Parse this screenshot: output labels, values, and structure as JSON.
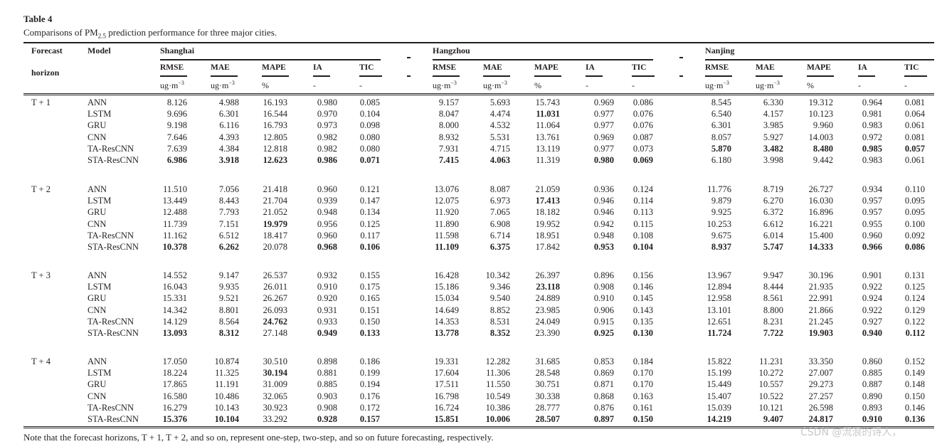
{
  "title": "Table 4",
  "caption": {
    "prefix": "Comparisons of PM",
    "subscript": "2.5",
    "suffix": " prediction performance for three major cities."
  },
  "headers": {
    "forecast": "Forecast",
    "horizon": "horizon",
    "model": "Model",
    "cities": [
      "Shanghai",
      "Hangzhou",
      "Nanjing"
    ],
    "metrics": [
      "RMSE",
      "MAE",
      "MAPE",
      "IA",
      "TIC"
    ],
    "units": [
      {
        "base": "ug·m",
        "sup": "−3"
      },
      {
        "base": "ug·m",
        "sup": "−3"
      },
      {
        "base": "%",
        "sup": ""
      },
      {
        "base": "-",
        "sup": ""
      },
      {
        "base": "-",
        "sup": ""
      }
    ]
  },
  "groups": [
    {
      "horizon": "T + 1",
      "rows": [
        {
          "model": "ANN",
          "values": [
            "8.126",
            "4.988",
            "16.193",
            "0.980",
            "0.085",
            "9.157",
            "5.693",
            "15.743",
            "0.969",
            "0.086",
            "8.545",
            "6.330",
            "19.312",
            "0.964",
            "0.081"
          ],
          "bold": []
        },
        {
          "model": "LSTM",
          "values": [
            "9.696",
            "6.301",
            "16.544",
            "0.970",
            "0.104",
            "8.047",
            "4.474",
            "11.031",
            "0.977",
            "0.076",
            "6.540",
            "4.157",
            "10.123",
            "0.981",
            "0.064"
          ],
          "bold": [
            7
          ]
        },
        {
          "model": "GRU",
          "values": [
            "9.198",
            "6.116",
            "16.793",
            "0.973",
            "0.098",
            "8.000",
            "4.532",
            "11.064",
            "0.977",
            "0.076",
            "6.301",
            "3.985",
            "9.960",
            "0.983",
            "0.061"
          ],
          "bold": []
        },
        {
          "model": "CNN",
          "values": [
            "7.646",
            "4.393",
            "12.805",
            "0.982",
            "0.080",
            "8.932",
            "5.531",
            "13.761",
            "0.969",
            "0.087",
            "8.057",
            "5.927",
            "14.003",
            "0.972",
            "0.081"
          ],
          "bold": []
        },
        {
          "model": "TA-ResCNN",
          "values": [
            "7.639",
            "4.384",
            "12.818",
            "0.982",
            "0.080",
            "7.931",
            "4.715",
            "13.119",
            "0.977",
            "0.073",
            "5.870",
            "3.482",
            "8.480",
            "0.985",
            "0.057"
          ],
          "bold": [
            10,
            11,
            12,
            13,
            14
          ]
        },
        {
          "model": "STA-ResCNN",
          "values": [
            "6.986",
            "3.918",
            "12.623",
            "0.986",
            "0.071",
            "7.415",
            "4.063",
            "11.319",
            "0.980",
            "0.069",
            "6.180",
            "3.998",
            "9.442",
            "0.983",
            "0.061"
          ],
          "bold": [
            0,
            1,
            2,
            3,
            4,
            5,
            6,
            8,
            9
          ]
        }
      ]
    },
    {
      "horizon": "T + 2",
      "rows": [
        {
          "model": "ANN",
          "values": [
            "11.510",
            "7.056",
            "21.418",
            "0.960",
            "0.121",
            "13.076",
            "8.087",
            "21.059",
            "0.936",
            "0.124",
            "11.776",
            "8.719",
            "26.727",
            "0.934",
            "0.110"
          ],
          "bold": []
        },
        {
          "model": "LSTM",
          "values": [
            "13.449",
            "8.443",
            "21.704",
            "0.939",
            "0.147",
            "12.075",
            "6.973",
            "17.413",
            "0.946",
            "0.114",
            "9.879",
            "6.270",
            "16.030",
            "0.957",
            "0.095"
          ],
          "bold": [
            7
          ]
        },
        {
          "model": "GRU",
          "values": [
            "12.488",
            "7.793",
            "21.052",
            "0.948",
            "0.134",
            "11.920",
            "7.065",
            "18.182",
            "0.946",
            "0.113",
            "9.925",
            "6.372",
            "16.896",
            "0.957",
            "0.095"
          ],
          "bold": []
        },
        {
          "model": "CNN",
          "values": [
            "11.739",
            "7.151",
            "19.979",
            "0.956",
            "0.125",
            "11.890",
            "6.908",
            "19.952",
            "0.942",
            "0.115",
            "10.253",
            "6.612",
            "16.221",
            "0.955",
            "0.100"
          ],
          "bold": [
            2
          ]
        },
        {
          "model": "TA-ResCNN",
          "values": [
            "11.162",
            "6.512",
            "18.417",
            "0.960",
            "0.117",
            "11.598",
            "6.714",
            "18.951",
            "0.948",
            "0.108",
            "9.675",
            "6.014",
            "15.400",
            "0.960",
            "0.092"
          ],
          "bold": []
        },
        {
          "model": "STA-ResCNN",
          "values": [
            "10.378",
            "6.262",
            "20.078",
            "0.968",
            "0.106",
            "11.109",
            "6.375",
            "17.842",
            "0.953",
            "0.104",
            "8.937",
            "5.747",
            "14.333",
            "0.966",
            "0.086"
          ],
          "bold": [
            0,
            1,
            3,
            4,
            5,
            6,
            8,
            9,
            10,
            11,
            12,
            13,
            14
          ]
        }
      ]
    },
    {
      "horizon": "T + 3",
      "rows": [
        {
          "model": "ANN",
          "values": [
            "14.552",
            "9.147",
            "26.537",
            "0.932",
            "0.155",
            "16.428",
            "10.342",
            "26.397",
            "0.896",
            "0.156",
            "13.967",
            "9.947",
            "30.196",
            "0.901",
            "0.131"
          ],
          "bold": []
        },
        {
          "model": "LSTM",
          "values": [
            "16.043",
            "9.935",
            "26.011",
            "0.910",
            "0.175",
            "15.186",
            "9.346",
            "23.118",
            "0.908",
            "0.146",
            "12.894",
            "8.444",
            "21.935",
            "0.922",
            "0.125"
          ],
          "bold": [
            7
          ]
        },
        {
          "model": "GRU",
          "values": [
            "15.331",
            "9.521",
            "26.267",
            "0.920",
            "0.165",
            "15.034",
            "9.540",
            "24.889",
            "0.910",
            "0.145",
            "12.958",
            "8.561",
            "22.991",
            "0.924",
            "0.124"
          ],
          "bold": []
        },
        {
          "model": "CNN",
          "values": [
            "14.342",
            "8.801",
            "26.093",
            "0.931",
            "0.151",
            "14.649",
            "8.852",
            "23.985",
            "0.906",
            "0.143",
            "13.101",
            "8.800",
            "21.866",
            "0.922",
            "0.129"
          ],
          "bold": []
        },
        {
          "model": "TA-ResCNN",
          "values": [
            "14.129",
            "8.564",
            "24.762",
            "0.933",
            "0.150",
            "14.353",
            "8.531",
            "24.049",
            "0.915",
            "0.135",
            "12.651",
            "8.231",
            "21.245",
            "0.927",
            "0.122"
          ],
          "bold": [
            2
          ]
        },
        {
          "model": "STA-ResCNN",
          "values": [
            "13.093",
            "8.312",
            "27.148",
            "0.949",
            "0.133",
            "13.778",
            "8.352",
            "23.390",
            "0.925",
            "0.130",
            "11.724",
            "7.722",
            "19.903",
            "0.940",
            "0.112"
          ],
          "bold": [
            0,
            1,
            3,
            4,
            5,
            6,
            8,
            9,
            10,
            11,
            12,
            13,
            14
          ]
        }
      ]
    },
    {
      "horizon": "T + 4",
      "rows": [
        {
          "model": "ANN",
          "values": [
            "17.050",
            "10.874",
            "30.510",
            "0.898",
            "0.186",
            "19.331",
            "12.282",
            "31.685",
            "0.853",
            "0.184",
            "15.822",
            "11.231",
            "33.350",
            "0.860",
            "0.152"
          ],
          "bold": []
        },
        {
          "model": "LSTM",
          "values": [
            "18.224",
            "11.325",
            "30.194",
            "0.881",
            "0.199",
            "17.604",
            "11.306",
            "28.548",
            "0.869",
            "0.170",
            "15.199",
            "10.272",
            "27.007",
            "0.885",
            "0.149"
          ],
          "bold": [
            2
          ]
        },
        {
          "model": "GRU",
          "values": [
            "17.865",
            "11.191",
            "31.009",
            "0.885",
            "0.194",
            "17.511",
            "11.550",
            "30.751",
            "0.871",
            "0.170",
            "15.449",
            "10.557",
            "29.273",
            "0.887",
            "0.148"
          ],
          "bold": []
        },
        {
          "model": "CNN",
          "values": [
            "16.580",
            "10.486",
            "32.065",
            "0.903",
            "0.176",
            "16.798",
            "10.549",
            "30.338",
            "0.868",
            "0.163",
            "15.407",
            "10.522",
            "27.257",
            "0.890",
            "0.150"
          ],
          "bold": []
        },
        {
          "model": "TA-ResCNN",
          "values": [
            "16.279",
            "10.143",
            "30.923",
            "0.908",
            "0.172",
            "16.724",
            "10.386",
            "28.777",
            "0.876",
            "0.161",
            "15.039",
            "10.121",
            "26.598",
            "0.893",
            "0.146"
          ],
          "bold": []
        },
        {
          "model": "STA-ResCNN",
          "values": [
            "15.376",
            "10.104",
            "33.292",
            "0.928",
            "0.157",
            "15.851",
            "10.006",
            "28.507",
            "0.897",
            "0.150",
            "14.219",
            "9.407",
            "24.817",
            "0.910",
            "0.136"
          ],
          "bold": [
            0,
            1,
            3,
            4,
            5,
            6,
            7,
            8,
            9,
            10,
            11,
            12,
            13,
            14
          ]
        }
      ]
    }
  ],
  "note": "Note that the forecast horizons, T + 1, T + 2, and so on, represent one-step, two-step, and so on future forecasting, respectively.",
  "watermark": "CSDN @流浪的诗人，"
}
